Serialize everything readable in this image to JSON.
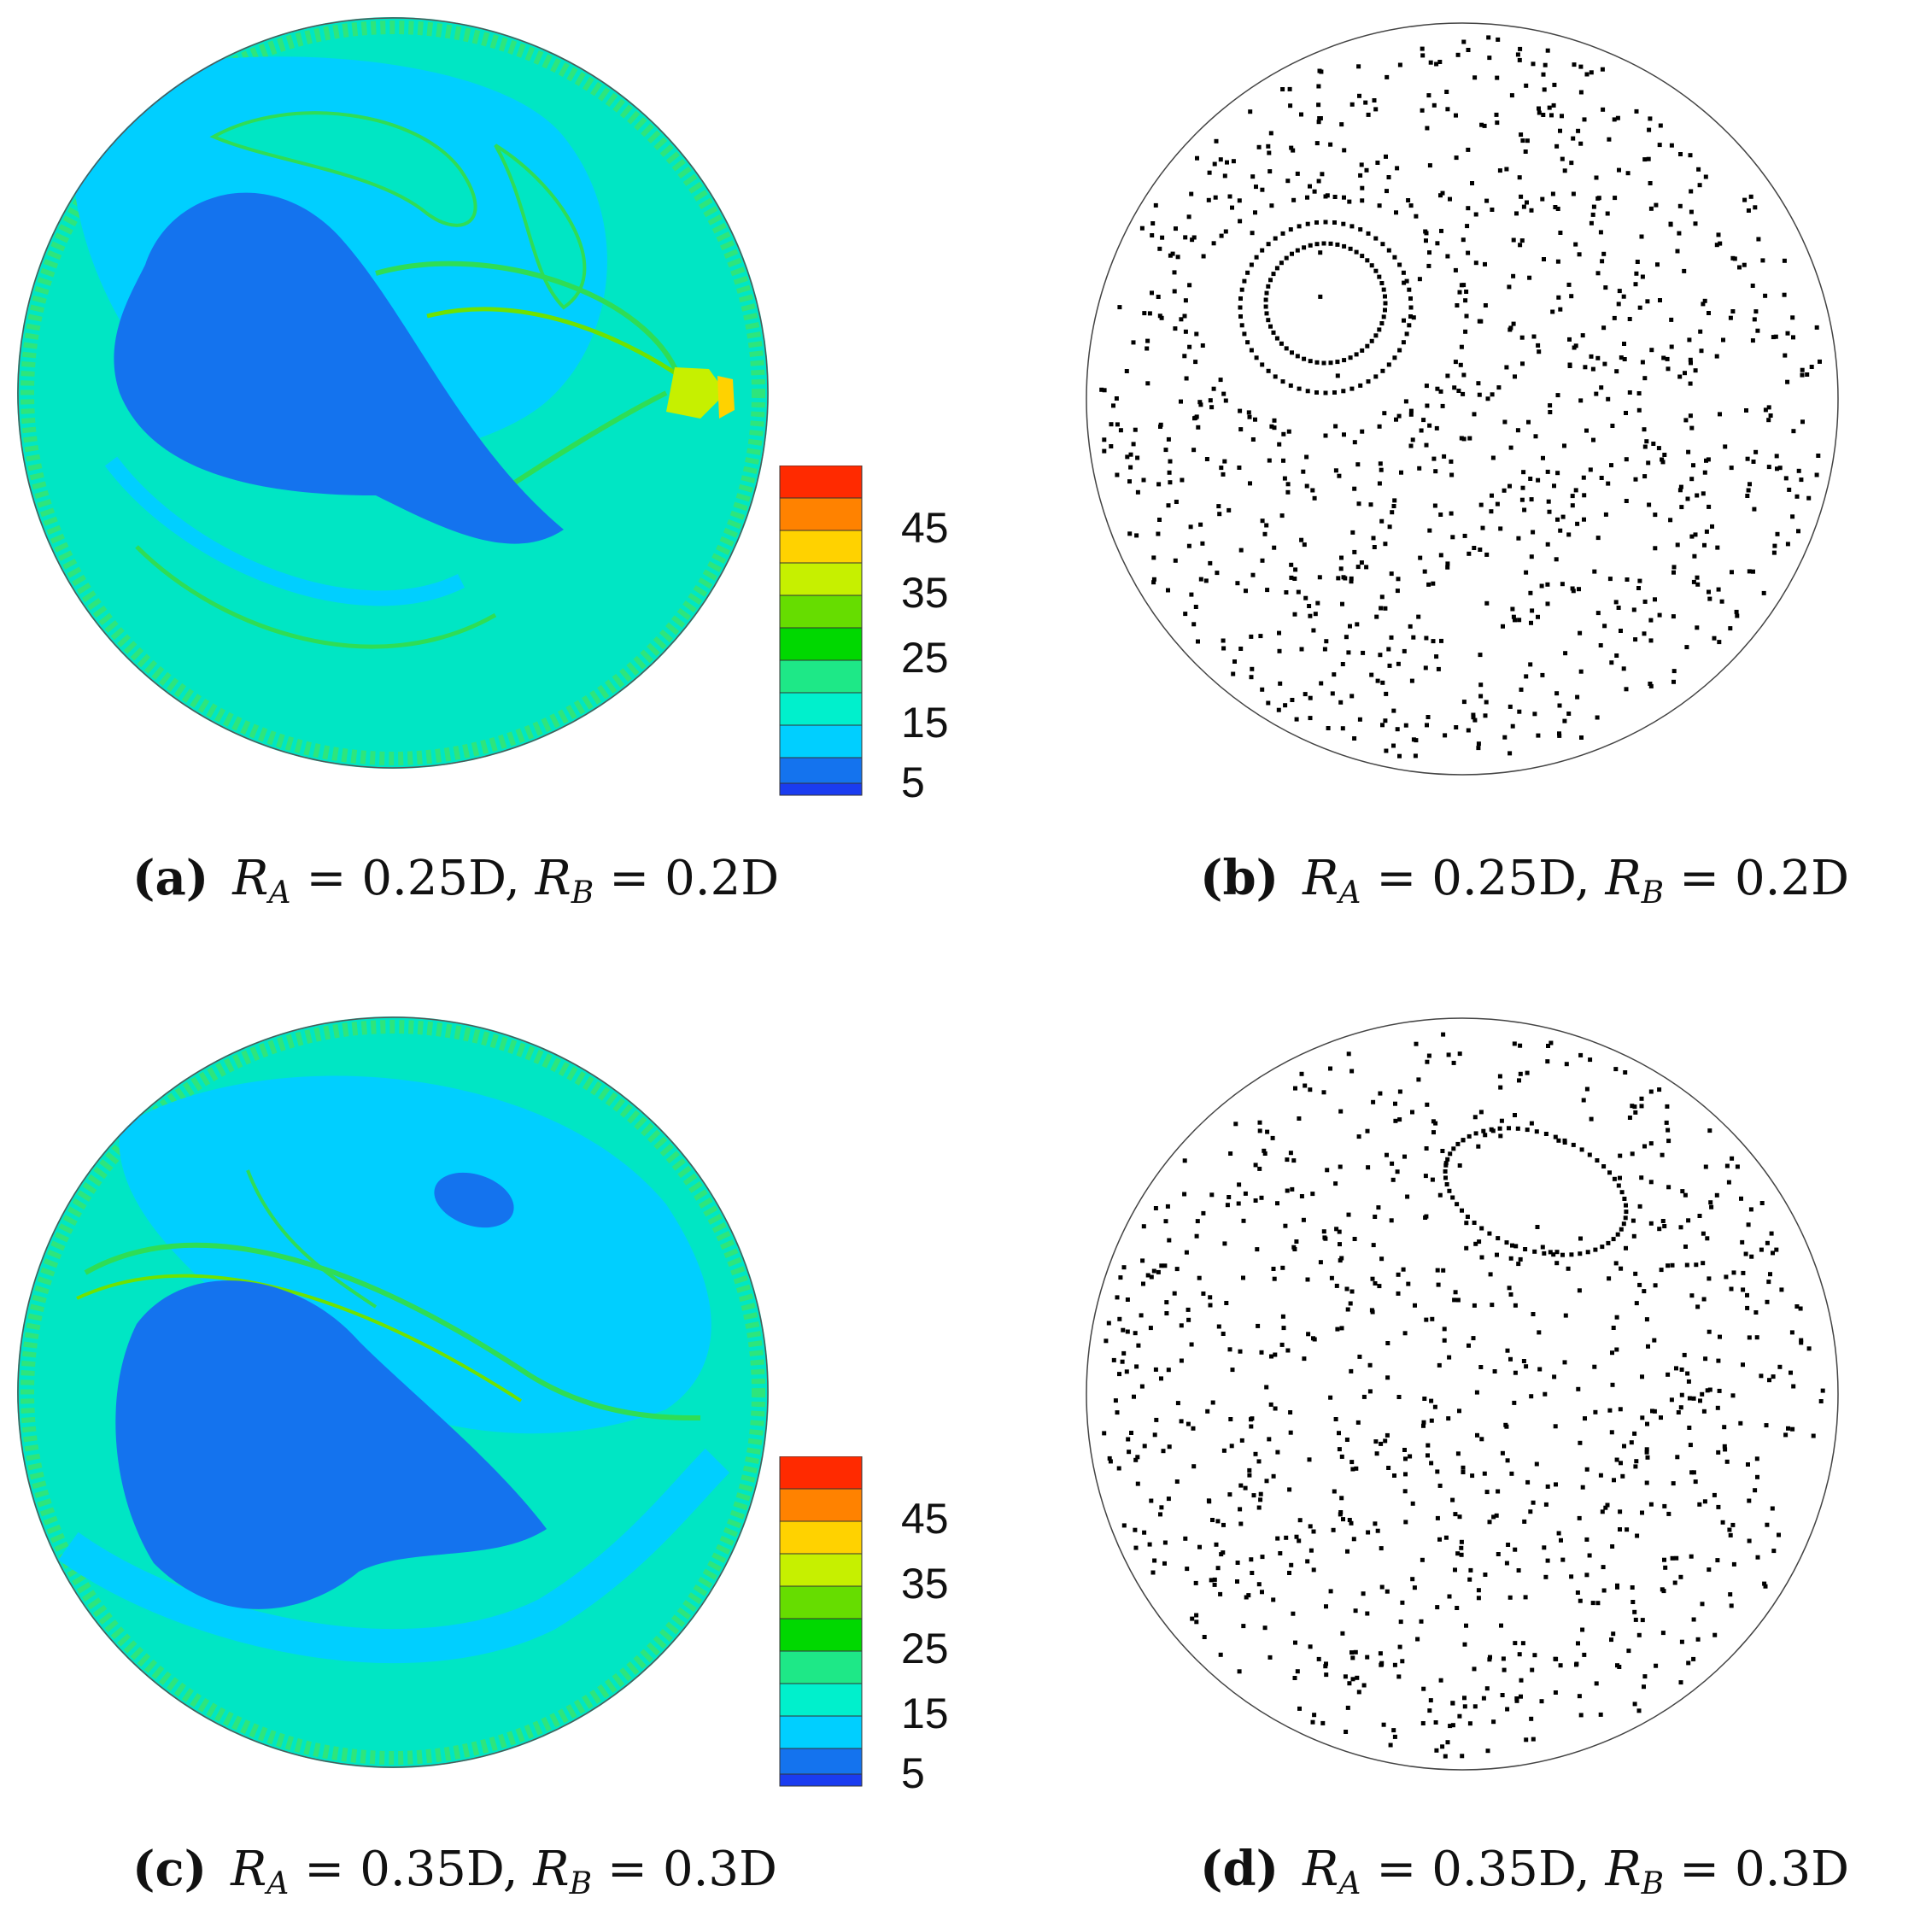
{
  "colorbar": {
    "levels": [
      "5",
      "15",
      "25",
      "35",
      "45"
    ],
    "colors": [
      "#1a3cf0",
      "#1473ee",
      "#00cfff",
      "#00f0cc",
      "#1ee887",
      "#00d800",
      "#66dd00",
      "#c6f000",
      "#ffd200",
      "#ff8200",
      "#ff2a00"
    ]
  },
  "panels": [
    {
      "id": "a",
      "kind": "contour",
      "caption": {
        "tag": "(a)",
        "ra_value": "0.25D",
        "rb_value": "0.2D"
      }
    },
    {
      "id": "b",
      "kind": "scatter",
      "caption": {
        "tag": "(b)",
        "ra_value": "0.25D",
        "rb_value": "0.2D"
      }
    },
    {
      "id": "c",
      "kind": "contour",
      "caption": {
        "tag": "(c)",
        "ra_value": "0.35D",
        "rb_value": "0.3D"
      }
    },
    {
      "id": "d",
      "kind": "scatter",
      "caption": {
        "tag": "(d)",
        "ra_value": "0.35D",
        "rb_value": "0.3D"
      }
    }
  ],
  "symbols": {
    "R": "R",
    "A": "A",
    "B": "B",
    "equals": "=",
    "comma": ","
  }
}
